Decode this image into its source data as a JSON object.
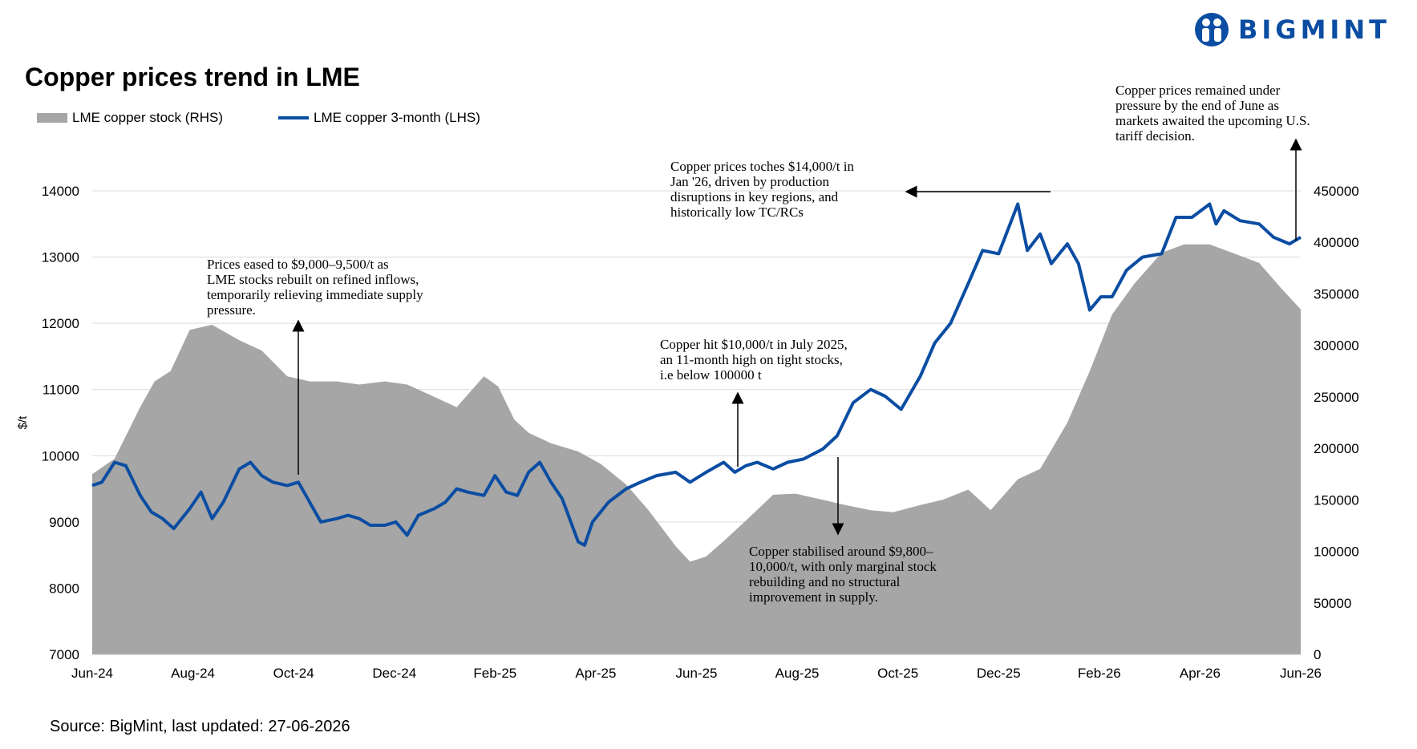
{
  "brand": {
    "name": "BIGMINT",
    "color": "#0b4da2"
  },
  "title": "Copper prices trend in LME",
  "legend": [
    {
      "label": "LME copper stock (RHS)",
      "color": "#a6a6a6"
    },
    {
      "label": "LME copper 3-month (LHS)",
      "color": "#0b4da2"
    }
  ],
  "source": "Source: BigMint, last updated: 27-06-2026",
  "annotations": [
    {
      "lines": [
        "Copper prices remained under",
        "pressure by the end of June  as",
        "markets awaited the upcoming U.S.",
        "tariff decision."
      ]
    },
    {
      "lines": [
        "Copper prices toches $14,000/t in",
        "Jan '26, driven by production",
        "disruptions in key regions, and",
        "historically low TC/RCs"
      ]
    },
    {
      "lines": [
        "Prices eased to $9,000–9,500/t as",
        "LME stocks rebuilt on refined inflows,",
        "temporarily relieving immediate supply",
        "pressure."
      ]
    },
    {
      "lines": [
        "Copper hit $10,000/t in July 2025,",
        "an 11-month high on tight stocks,",
        "i.e below 100000 t"
      ]
    },
    {
      "lines": [
        "Copper stabilised around $9,800–",
        "10,000/t, with only marginal stock",
        "rebuilding and no structural",
        "improvement in supply."
      ]
    }
  ],
  "chart_data": {
    "type": "line",
    "ylabel": "$/t",
    "x_ticks": [
      "Jun-24",
      "Aug-24",
      "Oct-24",
      "Dec-24",
      "Feb-25",
      "Apr-25",
      "Jun-25",
      "Aug-25",
      "Oct-25",
      "Dec-25",
      "Feb-26",
      "Apr-26",
      "Jun-26"
    ],
    "ylim_left": [
      7000,
      14000
    ],
    "yticks_left": [
      7000,
      8000,
      9000,
      10000,
      11000,
      12000,
      13000,
      14000
    ],
    "ylim_right": [
      0,
      450000
    ],
    "yticks_right": [
      0,
      50000,
      100000,
      150000,
      200000,
      250000,
      300000,
      350000,
      400000,
      450000
    ],
    "grid": true,
    "legend_position": "top-left",
    "series": [
      {
        "name": "LME copper stock (RHS)",
        "type": "area",
        "axis": "right",
        "x": [
          "2024-06-01",
          "2024-06-15",
          "2024-07-01",
          "2024-07-10",
          "2024-07-20",
          "2024-08-01",
          "2024-08-15",
          "2024-09-01",
          "2024-09-15",
          "2024-10-01",
          "2024-10-15",
          "2024-11-01",
          "2024-11-15",
          "2024-12-01",
          "2024-12-15",
          "2025-01-01",
          "2025-01-15",
          "2025-02-01",
          "2025-02-10",
          "2025-02-20",
          "2025-03-01",
          "2025-03-15",
          "2025-04-01",
          "2025-04-15",
          "2025-05-01",
          "2025-05-15",
          "2025-06-01",
          "2025-06-10",
          "2025-06-20",
          "2025-07-01",
          "2025-07-15",
          "2025-08-01",
          "2025-08-15",
          "2025-09-01",
          "2025-09-15",
          "2025-10-01",
          "2025-10-15",
          "2025-11-01",
          "2025-11-15",
          "2025-12-01",
          "2025-12-15",
          "2026-01-01",
          "2026-01-15",
          "2026-02-01",
          "2026-02-15",
          "2026-03-01",
          "2026-03-15",
          "2026-04-01",
          "2026-04-15",
          "2026-05-01",
          "2026-05-15",
          "2026-06-01",
          "2026-06-15",
          "2026-06-27"
        ],
        "values": [
          175000,
          190000,
          240000,
          265000,
          275000,
          315000,
          320000,
          305000,
          295000,
          270000,
          265000,
          265000,
          262000,
          265000,
          262000,
          250000,
          240000,
          270000,
          260000,
          228000,
          215000,
          205000,
          197000,
          185000,
          165000,
          140000,
          105000,
          90000,
          95000,
          110000,
          130000,
          155000,
          156000,
          150000,
          145000,
          140000,
          138000,
          145000,
          150000,
          160000,
          140000,
          170000,
          180000,
          225000,
          275000,
          330000,
          360000,
          390000,
          398000,
          398000,
          390000,
          380000,
          355000,
          335000
        ]
      },
      {
        "name": "LME copper 3-month (LHS)",
        "type": "line",
        "axis": "left",
        "x": [
          "2024-06-01",
          "2024-06-07",
          "2024-06-15",
          "2024-06-22",
          "2024-07-01",
          "2024-07-08",
          "2024-07-15",
          "2024-07-22",
          "2024-08-01",
          "2024-08-08",
          "2024-08-15",
          "2024-08-22",
          "2024-09-01",
          "2024-09-08",
          "2024-09-15",
          "2024-09-22",
          "2024-10-01",
          "2024-10-08",
          "2024-10-15",
          "2024-10-22",
          "2024-11-01",
          "2024-11-08",
          "2024-11-15",
          "2024-11-22",
          "2024-12-01",
          "2024-12-08",
          "2024-12-15",
          "2024-12-22",
          "2025-01-01",
          "2025-01-08",
          "2025-01-15",
          "2025-01-22",
          "2025-02-01",
          "2025-02-08",
          "2025-02-15",
          "2025-02-22",
          "2025-03-01",
          "2025-03-08",
          "2025-03-15",
          "2025-03-22",
          "2025-04-01",
          "2025-04-05",
          "2025-04-10",
          "2025-04-20",
          "2025-05-01",
          "2025-05-10",
          "2025-05-20",
          "2025-06-01",
          "2025-06-10",
          "2025-06-20",
          "2025-07-01",
          "2025-07-08",
          "2025-07-15",
          "2025-07-22",
          "2025-08-01",
          "2025-08-10",
          "2025-08-20",
          "2025-09-01",
          "2025-09-10",
          "2025-09-20",
          "2025-10-01",
          "2025-10-10",
          "2025-10-20",
          "2025-11-01",
          "2025-11-10",
          "2025-11-20",
          "2025-12-01",
          "2025-12-10",
          "2025-12-20",
          "2026-01-01",
          "2026-01-07",
          "2026-01-15",
          "2026-01-22",
          "2026-02-01",
          "2026-02-08",
          "2026-02-15",
          "2026-02-22",
          "2026-03-01",
          "2026-03-10",
          "2026-03-20",
          "2026-04-01",
          "2026-04-10",
          "2026-04-20",
          "2026-05-01",
          "2026-05-05",
          "2026-05-10",
          "2026-05-20",
          "2026-06-01",
          "2026-06-10",
          "2026-06-20",
          "2026-06-27"
        ],
        "values": [
          9550,
          9600,
          9900,
          9850,
          9400,
          9150,
          9050,
          8900,
          9200,
          9450,
          9050,
          9300,
          9800,
          9900,
          9700,
          9600,
          9550,
          9600,
          9300,
          9000,
          9050,
          9100,
          9050,
          8950,
          8950,
          9000,
          8800,
          9100,
          9200,
          9300,
          9500,
          9450,
          9400,
          9700,
          9450,
          9400,
          9750,
          9900,
          9600,
          9350,
          8700,
          8650,
          9000,
          9300,
          9500,
          9600,
          9700,
          9750,
          9600,
          9750,
          9900,
          9750,
          9850,
          9900,
          9800,
          9900,
          9950,
          10100,
          10300,
          10800,
          11000,
          10900,
          10700,
          11200,
          11700,
          12000,
          12600,
          13100,
          13050,
          13800,
          13100,
          13350,
          12900,
          13200,
          12900,
          12200,
          12400,
          12400,
          12800,
          13000,
          13050,
          13600,
          13600,
          13800,
          13500,
          13700,
          13550,
          13500,
          13300,
          13200,
          13300
        ]
      }
    ]
  }
}
